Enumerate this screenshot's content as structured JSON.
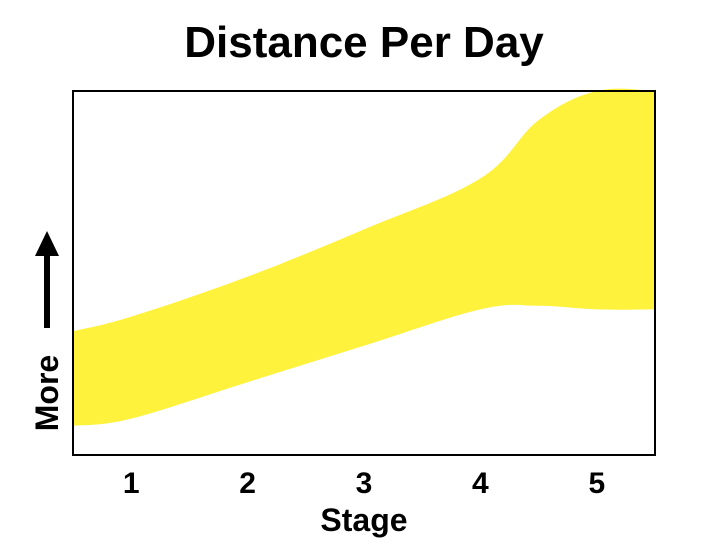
{
  "chart_data": {
    "type": "area",
    "title": "Distance Per Day",
    "xlabel": "Stage",
    "ylabel": "More",
    "categories": [
      "1",
      "2",
      "3",
      "4",
      "5"
    ],
    "x": [
      0.5,
      1,
      2,
      3,
      4,
      4.5,
      5,
      5.5
    ],
    "series": [
      {
        "lower": [
          0.08,
          0.1,
          0.2,
          0.3,
          0.4,
          0.41,
          0.4,
          0.4
        ],
        "upper": [
          0.34,
          0.38,
          0.49,
          0.62,
          0.76,
          0.92,
          1.0,
          1.0
        ]
      }
    ],
    "xlim": [
      0.5,
      5.5
    ],
    "ylim": [
      0,
      1
    ],
    "y_ticks_shown": false,
    "grid": false,
    "fill_color": "#fff23d",
    "axis_color": "#000000"
  }
}
